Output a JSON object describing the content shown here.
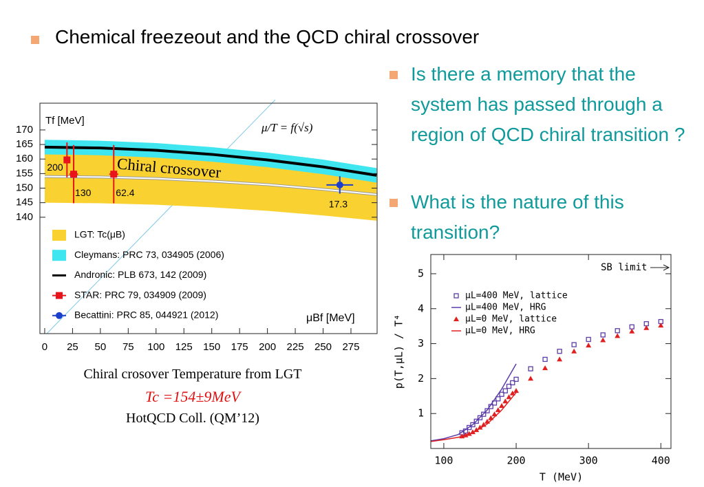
{
  "title": "Chemical freezeout and the QCD chiral crossover",
  "bullets": [
    "Is there a memory that the system has passed through a region of QCD chiral  transition ?",
    "What is the nature of this transition?"
  ],
  "caption": [
    "Chiral crosover  Temperature from LGT",
    "Tc =154±9MeV",
    "HotQCD Coll.  (QM’12)"
  ],
  "chart_data": [
    {
      "type": "line",
      "ylabel": "Tf [MeV]",
      "xlabel": "μBf [MeV]",
      "annotations": [
        "μ/T = f(√s)",
        "Chiral  crossover"
      ],
      "xlim": [
        -4.3,
        298.5
      ],
      "ylim": [
        100,
        179.2
      ],
      "xticks": [
        0,
        25,
        50,
        75,
        100,
        125,
        150,
        175,
        200,
        225,
        250,
        275
      ],
      "yticks": [
        140,
        145,
        150,
        155,
        160,
        165,
        170
      ],
      "legend": "lower left",
      "x": [
        0,
        50,
        100,
        150,
        200,
        250,
        298
      ],
      "series": [
        {
          "name": "LGT: Tc(μB)",
          "style": "band",
          "color": "#f9d232",
          "values": [
            154,
            153.8,
            153.3,
            152.4,
            151.2,
            149.6,
            147.8
          ],
          "lower": [
            145,
            144.8,
            144.3,
            143.4,
            142.2,
            140.6,
            138.8
          ],
          "upper": [
            163,
            162.8,
            162.3,
            161.4,
            160.2,
            158.6,
            156.8
          ]
        },
        {
          "name": "Cleymans: PRC 73, 034905 (2006)",
          "style": "band",
          "color": "#3fe6f0",
          "lower": [
            161.6,
            161.3,
            160.5,
            159.1,
            157.2,
            154.8,
            151.9
          ],
          "upper": [
            166.6,
            166.3,
            165.5,
            164.1,
            162.2,
            159.8,
            156.9
          ]
        },
        {
          "name": "Andronic: PLB 673, 142 (2009)",
          "style": "line",
          "color": "#000000",
          "values": [
            164.1,
            163.8,
            163,
            161.6,
            159.7,
            157.3,
            154.4
          ]
        },
        {
          "name": "STAR: PRC 79, 034909 (2009)",
          "style": "points",
          "marker": "square",
          "color": "#e8141c",
          "x": [
            20,
            26,
            62
          ],
          "values": [
            159.7,
            154.8,
            154.8
          ],
          "yerr": [
            6,
            10,
            10
          ],
          "xerr": [
            3,
            4,
            4
          ],
          "point_labels": [
            "200",
            "130",
            "62.4"
          ]
        },
        {
          "name": "Becattini: PRC 85, 044921 (2012)",
          "style": "points",
          "marker": "circle",
          "color": "#1a3fcc",
          "x": [
            265
          ],
          "values": [
            151.1
          ],
          "yerr": [
            3
          ],
          "xerr": [
            12
          ],
          "point_labels": [
            "17.3"
          ]
        }
      ]
    },
    {
      "type": "line",
      "xlabel": "T (MeV)",
      "ylabel": "p(T,μL) / T⁴",
      "annotations": [
        "SB limit"
      ],
      "xlim": [
        82,
        414
      ],
      "ylim": [
        0,
        5.55
      ],
      "xticks": [
        100,
        200,
        300,
        400
      ],
      "yticks": [
        1,
        2,
        3,
        4,
        5
      ],
      "legend": "upper left",
      "series": [
        {
          "name": "μL=400 MeV, lattice",
          "style": "points",
          "marker": "opensquare",
          "color": "#5a3ca8",
          "x": [
            125,
            130,
            135,
            140,
            145,
            150,
            155,
            160,
            165,
            170,
            175,
            180,
            185,
            190,
            195,
            200,
            220,
            240,
            260,
            280,
            300,
            320,
            340,
            360,
            380,
            400
          ],
          "values": [
            0.45,
            0.5,
            0.6,
            0.68,
            0.78,
            0.88,
            0.98,
            1.08,
            1.2,
            1.3,
            1.42,
            1.55,
            1.65,
            1.78,
            1.88,
            1.98,
            2.28,
            2.55,
            2.78,
            2.97,
            3.12,
            3.25,
            3.37,
            3.48,
            3.57,
            3.63
          ]
        },
        {
          "name": "μL=400 MeV, HRG",
          "style": "line",
          "color": "#5a3ca8",
          "x": [
            82,
            100,
            120,
            140,
            160,
            180,
            200
          ],
          "values": [
            0.22,
            0.28,
            0.4,
            0.68,
            1.1,
            1.7,
            2.42
          ]
        },
        {
          "name": "μL=0 MeV, lattice",
          "style": "points",
          "marker": "triangle",
          "color": "#e02020",
          "x": [
            125,
            130,
            135,
            140,
            145,
            150,
            155,
            160,
            165,
            170,
            175,
            180,
            185,
            190,
            195,
            200,
            220,
            240,
            260,
            280,
            300,
            320,
            340,
            360,
            380,
            400
          ],
          "values": [
            0.35,
            0.38,
            0.42,
            0.47,
            0.53,
            0.6,
            0.68,
            0.77,
            0.87,
            0.98,
            1.1,
            1.22,
            1.35,
            1.47,
            1.58,
            1.65,
            2.0,
            2.3,
            2.55,
            2.78,
            2.95,
            3.1,
            3.22,
            3.35,
            3.45,
            3.52
          ]
        },
        {
          "name": "μL=0 MeV, HRG",
          "style": "line",
          "color": "#e02020",
          "x": [
            82,
            100,
            120,
            140,
            160,
            180,
            200
          ],
          "values": [
            0.2,
            0.25,
            0.32,
            0.45,
            0.7,
            1.1,
            1.6
          ]
        }
      ]
    }
  ]
}
